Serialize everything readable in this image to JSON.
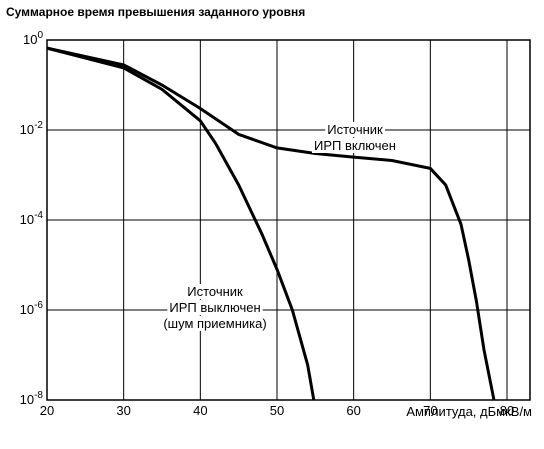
{
  "chart_data": {
    "type": "line",
    "title": "Суммарное время превышения заданного уровня",
    "x_label": "Амплитуда, дБмкВ/м",
    "log_y": true,
    "grid": true,
    "xlim": [
      20,
      83
    ],
    "xticks": [
      20,
      30,
      40,
      50,
      60,
      70,
      80
    ],
    "ylim": [
      1e-08,
      1
    ],
    "yticks": [
      {
        "value": 1,
        "label": "10^0"
      },
      {
        "value": 0.01,
        "label": "10^-2"
      },
      {
        "value": 0.0001,
        "label": "10^-4"
      },
      {
        "value": 1e-06,
        "label": "10^-6"
      },
      {
        "value": 1e-08,
        "label": "10^-8"
      }
    ],
    "series": [
      {
        "name": "Источник ИРП включен",
        "color": "#000000",
        "x": [
          20,
          30,
          35,
          40,
          45,
          50,
          55,
          60,
          65,
          70,
          72,
          74,
          75,
          76,
          77,
          78.3
        ],
        "values": [
          0.66,
          0.28,
          0.1,
          0.03,
          0.008,
          0.004,
          0.003,
          0.0025,
          0.0021,
          0.0014,
          0.0006,
          8e-05,
          1.3e-05,
          1.6e-06,
          1.3e-07,
          1e-08
        ]
      },
      {
        "name": "Источник ИРП выключен (шум приемника)",
        "color": "#000000",
        "x": [
          20,
          30,
          35,
          40,
          42,
          45,
          48,
          50,
          52,
          54,
          54.8
        ],
        "values": [
          0.66,
          0.24,
          0.08,
          0.016,
          0.005,
          0.0006,
          5e-05,
          8e-06,
          1e-06,
          6e-08,
          1e-08
        ]
      }
    ],
    "annotations": [
      [
        "Источник",
        "ИРП включен"
      ],
      [
        "Источник",
        "ИРП выключен",
        "(шум приемника)"
      ]
    ]
  }
}
